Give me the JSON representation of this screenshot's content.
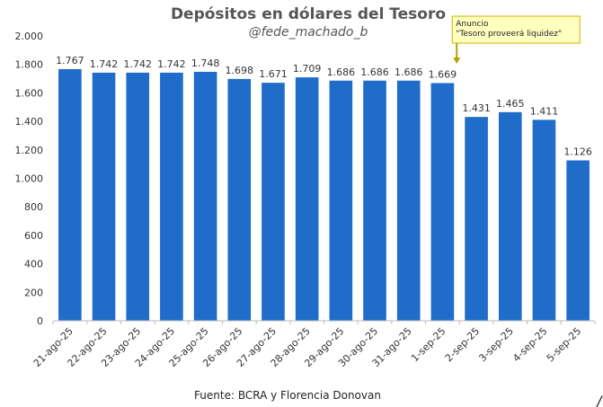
{
  "chart_data": {
    "type": "bar",
    "title": "Depósitos en dólares del Tesoro",
    "subtitle": "@fede_machado_b",
    "categories": [
      "21-ago-25",
      "22-ago-25",
      "23-ago-25",
      "24-ago-25",
      "25-ago-25",
      "26-ago-25",
      "27-ago-25",
      "28-ago-25",
      "29-ago-25",
      "30-ago-25",
      "31-ago-25",
      "1-sep-25",
      "2-sep-25",
      "3-sep-25",
      "4-sep-25",
      "5-sep-25"
    ],
    "values": [
      1767,
      1742,
      1742,
      1742,
      1748,
      1698,
      1671,
      1709,
      1686,
      1686,
      1686,
      1669,
      1431,
      1465,
      1411,
      1126
    ],
    "value_labels": [
      "1.767",
      "1.742",
      "1.742",
      "1.742",
      "1.748",
      "1.698",
      "1.671",
      "1.709",
      "1.686",
      "1.686",
      "1.686",
      "1.669",
      "1.431",
      "1.465",
      "1.411",
      "1.126"
    ],
    "ylim": [
      0,
      2000
    ],
    "yticks": [
      0,
      200,
      400,
      600,
      800,
      1000,
      1200,
      1400,
      1600,
      1800,
      2000
    ],
    "ytick_labels": [
      "0",
      "200",
      "400",
      "600",
      "800",
      "1.000",
      "1.200",
      "1.400",
      "1.600",
      "1.800",
      "2.000"
    ],
    "xlabel": "",
    "ylabel": "",
    "grid": false,
    "bar_color": "#1f6dc8",
    "annotation": {
      "lines": [
        "Anuncio",
        "\"Tesoro proveerá liquidez\""
      ],
      "target_category": "1-sep-25",
      "box_fill": "#ffffc0",
      "box_border": "#c8b400"
    },
    "source": "Fuente: BCRA y Florencia Donovan"
  },
  "corner_mark": "/"
}
